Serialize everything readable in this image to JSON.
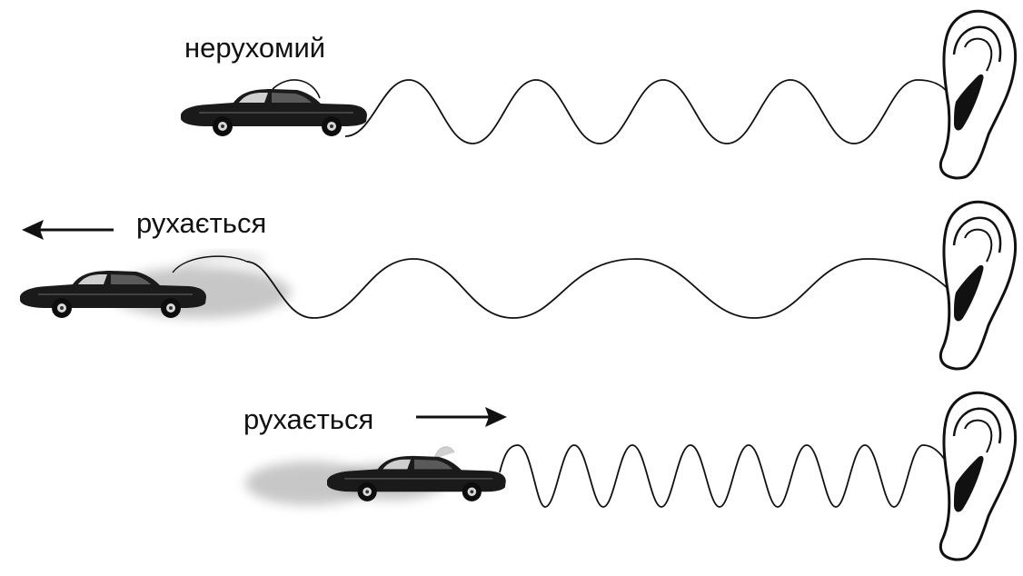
{
  "rows": [
    {
      "label": "нерухомий",
      "state": "stationary",
      "waves_shown": 5
    },
    {
      "label": "рухається",
      "state": "moving-away",
      "direction": "left",
      "waves_shown": 3
    },
    {
      "label": "рухається",
      "state": "moving-toward",
      "direction": "right",
      "waves_shown": 8
    }
  ],
  "colors": {
    "ink": "#111111",
    "car": "#1a1a1a",
    "blur": "#9a9a9a"
  }
}
